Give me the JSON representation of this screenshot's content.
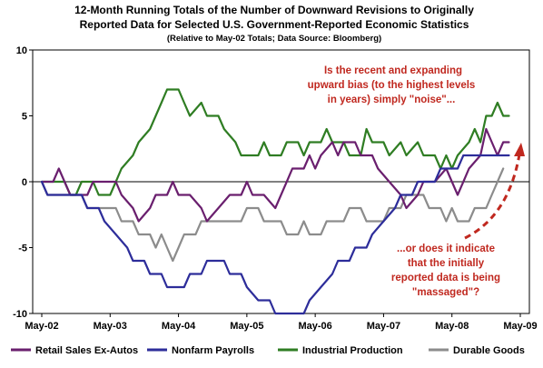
{
  "chart_data": {
    "type": "line",
    "title": "12-Month Running Totals of the Number of Downward Revisions to Originally",
    "title_line2": "Reported Data for Selected U.S. Government-Reported Economic Statistics",
    "subtitle": "(Relative to May-02 Totals; Data Source: Bloomberg)",
    "x_tick_labels": [
      "May-02",
      "May-03",
      "May-04",
      "May-05",
      "May-06",
      "May-07",
      "May-08",
      "May-09"
    ],
    "y_ticks": [
      -10,
      -5,
      0,
      5,
      10
    ],
    "ylim": [
      -10,
      10
    ],
    "x_start": "May-02",
    "x_end": "May-09",
    "grid": false,
    "legend_position": "bottom",
    "series": [
      {
        "name": "Retail Sales Ex-Autos",
        "color": "#6a1f6e",
        "points": [
          [
            "May-02",
            0
          ],
          [
            "Jul-02",
            0
          ],
          [
            "Aug-02",
            1
          ],
          [
            "Sep-02",
            0
          ],
          [
            "Oct-02",
            -1
          ],
          [
            "Jan-03",
            -1
          ],
          [
            "Feb-03",
            0
          ],
          [
            "Jun-03",
            0
          ],
          [
            "Jul-03",
            -1
          ],
          [
            "Sep-03",
            -2
          ],
          [
            "Oct-03",
            -3
          ],
          [
            "Dec-03",
            -2
          ],
          [
            "Jan-04",
            -1
          ],
          [
            "Mar-04",
            -1
          ],
          [
            "Apr-04",
            0
          ],
          [
            "May-04",
            -1
          ],
          [
            "Jul-04",
            -1
          ],
          [
            "Sep-04",
            -2
          ],
          [
            "Oct-04",
            -3
          ],
          [
            "Dec-04",
            -2
          ],
          [
            "Feb-05",
            -1
          ],
          [
            "Apr-05",
            -1
          ],
          [
            "May-05",
            0
          ],
          [
            "Jun-05",
            -1
          ],
          [
            "Aug-05",
            -1
          ],
          [
            "Oct-05",
            -2
          ],
          [
            "Nov-05",
            -1
          ],
          [
            "Dec-05",
            0
          ],
          [
            "Jan-06",
            1
          ],
          [
            "Mar-06",
            1
          ],
          [
            "Apr-06",
            2
          ],
          [
            "May-06",
            1
          ],
          [
            "Jun-06",
            2
          ],
          [
            "Aug-06",
            3
          ],
          [
            "Sep-06",
            2
          ],
          [
            "Oct-06",
            3
          ],
          [
            "Dec-06",
            3
          ],
          [
            "Jan-07",
            2
          ],
          [
            "Mar-07",
            2
          ],
          [
            "Apr-07",
            1
          ],
          [
            "Jun-07",
            0
          ],
          [
            "Aug-07",
            -1
          ],
          [
            "Sep-07",
            -2
          ],
          [
            "Nov-07",
            -1
          ],
          [
            "Dec-07",
            0
          ],
          [
            "Feb-08",
            0
          ],
          [
            "Apr-08",
            1
          ],
          [
            "May-08",
            0
          ],
          [
            "Jun-08",
            -1
          ],
          [
            "Jul-08",
            0
          ],
          [
            "Aug-08",
            1
          ],
          [
            "Oct-08",
            2
          ],
          [
            "Nov-08",
            4
          ],
          [
            "Jan-09",
            2
          ],
          [
            "Feb-09",
            3
          ],
          [
            "Mar-09",
            3
          ]
        ]
      },
      {
        "name": "Nonfarm Payrolls",
        "color": "#2d2d9a",
        "points": [
          [
            "May-02",
            0
          ],
          [
            "Jun-02",
            -1
          ],
          [
            "Dec-02",
            -1
          ],
          [
            "Jan-03",
            -2
          ],
          [
            "Mar-03",
            -2
          ],
          [
            "Apr-03",
            -3
          ],
          [
            "Jun-03",
            -4
          ],
          [
            "Aug-03",
            -5
          ],
          [
            "Sep-03",
            -6
          ],
          [
            "Nov-03",
            -6
          ],
          [
            "Dec-03",
            -7
          ],
          [
            "Feb-04",
            -7
          ],
          [
            "Mar-04",
            -8
          ],
          [
            "Jun-04",
            -8
          ],
          [
            "Jul-04",
            -7
          ],
          [
            "Sep-04",
            -7
          ],
          [
            "Oct-04",
            -6
          ],
          [
            "Jan-05",
            -6
          ],
          [
            "Feb-05",
            -7
          ],
          [
            "Apr-05",
            -7
          ],
          [
            "May-05",
            -8
          ],
          [
            "Jul-05",
            -9
          ],
          [
            "Sep-05",
            -9
          ],
          [
            "Oct-05",
            -10
          ],
          [
            "Dec-05",
            -10
          ],
          [
            "Jan-06",
            -11
          ],
          [
            "Mar-06",
            -11
          ],
          [
            "Apr-06",
            -9
          ],
          [
            "Jun-06",
            -8
          ],
          [
            "Aug-06",
            -7
          ],
          [
            "Sep-06",
            -6
          ],
          [
            "Nov-06",
            -6
          ],
          [
            "Dec-06",
            -5
          ],
          [
            "Feb-07",
            -5
          ],
          [
            "Mar-07",
            -4
          ],
          [
            "May-07",
            -3
          ],
          [
            "Jul-07",
            -2
          ],
          [
            "Aug-07",
            -1
          ],
          [
            "Oct-07",
            -1
          ],
          [
            "Nov-07",
            0
          ],
          [
            "Feb-08",
            0
          ],
          [
            "Mar-08",
            1
          ],
          [
            "Jun-08",
            1
          ],
          [
            "Jul-08",
            2
          ],
          [
            "Dec-08",
            2
          ],
          [
            "Jan-09",
            2
          ],
          [
            "Mar-09",
            2
          ]
        ]
      },
      {
        "name": "Industrial Production",
        "color": "#2f7d23",
        "points": [
          [
            "May-02",
            0
          ],
          [
            "Sep-02",
            0
          ],
          [
            "Oct-02",
            -1
          ],
          [
            "Nov-02",
            -1
          ],
          [
            "Dec-02",
            0
          ],
          [
            "Feb-03",
            0
          ],
          [
            "Mar-03",
            -1
          ],
          [
            "May-03",
            -1
          ],
          [
            "Jun-03",
            0
          ],
          [
            "Jul-03",
            1
          ],
          [
            "Sep-03",
            2
          ],
          [
            "Oct-03",
            3
          ],
          [
            "Dec-03",
            4
          ],
          [
            "Jan-04",
            5
          ],
          [
            "Feb-04",
            6
          ],
          [
            "Mar-04",
            7
          ],
          [
            "May-04",
            7
          ],
          [
            "Jun-04",
            6
          ],
          [
            "Jul-04",
            5
          ],
          [
            "Sep-04",
            6
          ],
          [
            "Oct-04",
            5
          ],
          [
            "Dec-04",
            5
          ],
          [
            "Jan-05",
            4
          ],
          [
            "Mar-05",
            3
          ],
          [
            "Apr-05",
            2
          ],
          [
            "Jul-05",
            2
          ],
          [
            "Aug-05",
            3
          ],
          [
            "Sep-05",
            2
          ],
          [
            "Nov-05",
            2
          ],
          [
            "Dec-05",
            3
          ],
          [
            "Feb-06",
            3
          ],
          [
            "Mar-06",
            2
          ],
          [
            "Apr-06",
            3
          ],
          [
            "Jun-06",
            3
          ],
          [
            "Jul-06",
            4
          ],
          [
            "Aug-06",
            3
          ],
          [
            "Oct-06",
            3
          ],
          [
            "Nov-06",
            2
          ],
          [
            "Jan-07",
            2
          ],
          [
            "Feb-07",
            4
          ],
          [
            "Mar-07",
            3
          ],
          [
            "May-07",
            3
          ],
          [
            "Jun-07",
            2
          ],
          [
            "Aug-07",
            3
          ],
          [
            "Sep-07",
            2
          ],
          [
            "Nov-07",
            3
          ],
          [
            "Dec-07",
            2
          ],
          [
            "Feb-08",
            2
          ],
          [
            "Mar-08",
            1
          ],
          [
            "Apr-08",
            2
          ],
          [
            "May-08",
            1
          ],
          [
            "Jun-08",
            2
          ],
          [
            "Aug-08",
            3
          ],
          [
            "Sep-08",
            4
          ],
          [
            "Oct-08",
            3
          ],
          [
            "Nov-08",
            5
          ],
          [
            "Dec-08",
            5
          ],
          [
            "Jan-09",
            6
          ],
          [
            "Feb-09",
            5
          ],
          [
            "Mar-09",
            5
          ]
        ]
      },
      {
        "name": "Durable Goods",
        "color": "#8c8c8c",
        "points": [
          [
            "May-02",
            0
          ],
          [
            "Jun-02",
            -1
          ],
          [
            "Dec-02",
            -1
          ],
          [
            "Jan-03",
            -2
          ],
          [
            "Jun-03",
            -2
          ],
          [
            "Jul-03",
            -3
          ],
          [
            "Sep-03",
            -3
          ],
          [
            "Oct-03",
            -4
          ],
          [
            "Dec-03",
            -4
          ],
          [
            "Jan-04",
            -5
          ],
          [
            "Feb-04",
            -4
          ],
          [
            "Mar-04",
            -5
          ],
          [
            "Apr-04",
            -6
          ],
          [
            "May-04",
            -5
          ],
          [
            "Jun-04",
            -4
          ],
          [
            "Aug-04",
            -4
          ],
          [
            "Sep-04",
            -3
          ],
          [
            "Apr-05",
            -3
          ],
          [
            "May-05",
            -2
          ],
          [
            "Jul-05",
            -2
          ],
          [
            "Aug-05",
            -3
          ],
          [
            "Nov-05",
            -3
          ],
          [
            "Dec-05",
            -4
          ],
          [
            "Feb-06",
            -4
          ],
          [
            "Mar-06",
            -3
          ],
          [
            "Apr-06",
            -4
          ],
          [
            "Jun-06",
            -4
          ],
          [
            "Jul-06",
            -3
          ],
          [
            "Oct-06",
            -3
          ],
          [
            "Nov-06",
            -2
          ],
          [
            "Jan-07",
            -2
          ],
          [
            "Feb-07",
            -3
          ],
          [
            "May-07",
            -3
          ],
          [
            "Jun-07",
            -2
          ],
          [
            "Aug-07",
            -2
          ],
          [
            "Sep-07",
            -1
          ],
          [
            "Dec-07",
            -1
          ],
          [
            "Jan-08",
            -2
          ],
          [
            "Mar-08",
            -2
          ],
          [
            "Apr-08",
            -3
          ],
          [
            "May-08",
            -2
          ],
          [
            "Jun-08",
            -3
          ],
          [
            "Aug-08",
            -3
          ],
          [
            "Sep-08",
            -2
          ],
          [
            "Nov-08",
            -2
          ],
          [
            "Dec-08",
            -1
          ],
          [
            "Jan-09",
            0
          ],
          [
            "Feb-09",
            1
          ]
        ]
      }
    ],
    "annotations": {
      "top": [
        "Is the recent and expanding",
        "upward bias (to the highest levels",
        "in years) simply \"noise\"..."
      ],
      "bottom": [
        "...or does it indicate",
        "that the initially",
        "reported data is being",
        "\"massaged\"?"
      ],
      "color": "#c0281f"
    }
  }
}
